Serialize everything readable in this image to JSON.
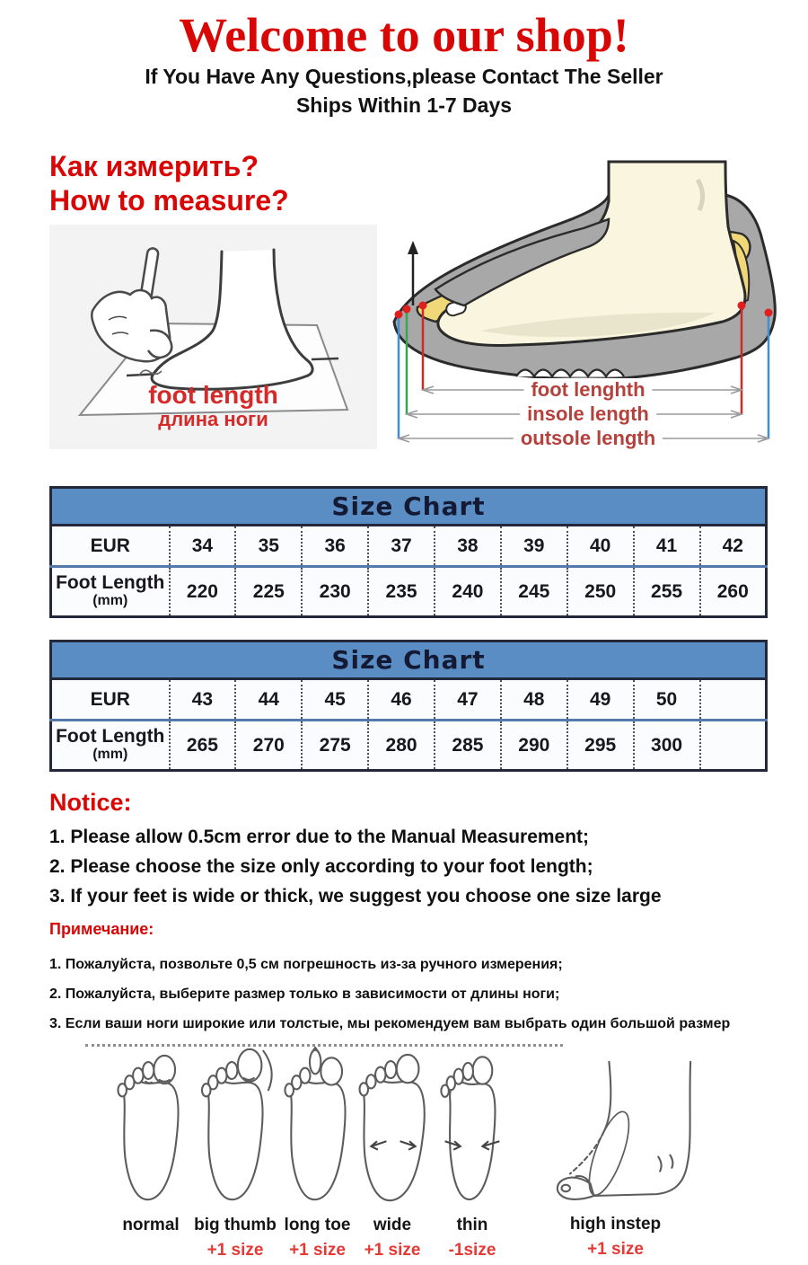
{
  "header": {
    "title": "Welcome to our shop!",
    "subtitle1": "If You Have Any Questions,please Contact The Seller",
    "subtitle2": "Ships Within 1-7 Days"
  },
  "measure": {
    "heading_ru": "Как измерить?",
    "heading_en": "How to measure?",
    "foot_tracing": {
      "label_en": "foot length",
      "label_ru": "длина ноги"
    },
    "shoe_diagram": {
      "labels": [
        "foot lenghth",
        "insole length",
        "outsole length"
      ]
    }
  },
  "size_charts": [
    {
      "title": "Size Chart",
      "row1_label": "EUR",
      "row2_label_line1": "Foot Length",
      "row2_label_line2": "(mm)",
      "sizes": [
        "34",
        "35",
        "36",
        "37",
        "38",
        "39",
        "40",
        "41",
        "42"
      ],
      "lengths": [
        "220",
        "225",
        "230",
        "235",
        "240",
        "245",
        "250",
        "255",
        "260"
      ]
    },
    {
      "title": "Size Chart",
      "row1_label": "EUR",
      "row2_label_line1": "Foot Length",
      "row2_label_line2": "(mm)",
      "sizes": [
        "43",
        "44",
        "45",
        "46",
        "47",
        "48",
        "49",
        "50",
        ""
      ],
      "lengths": [
        "265",
        "270",
        "275",
        "280",
        "285",
        "290",
        "295",
        "300",
        ""
      ]
    }
  ],
  "notice": {
    "heading": "Notice:",
    "items": [
      "1. Please allow 0.5cm error due to the Manual Measurement;",
      "2. Please choose the size only according to your foot length;",
      "3. If your feet is wide or thick, we suggest you choose one size large"
    ]
  },
  "notice_ru": {
    "heading": "Примечание:",
    "items": [
      "1. Пожалуйста, позвольте 0,5 см погрешность из-за ручного измерения;",
      "2. Пожалуйста, выберите размер только в зависимости от длины ноги;",
      "3. Если ваши ноги широкие или толстые, мы рекомендуем вам выбрать один большой размер"
    ]
  },
  "foot_types": {
    "items": [
      {
        "label": "normal",
        "size": ""
      },
      {
        "label": "big thumb",
        "size": "+1 size"
      },
      {
        "label": "long toe",
        "size": "+1 size"
      },
      {
        "label": "wide",
        "size": "+1 size"
      },
      {
        "label": "thin",
        "size": "-1size"
      },
      {
        "label": "high instep",
        "size": "+1 size"
      }
    ]
  },
  "colors": {
    "accent_red": "#d90606",
    "table_blue": "#5b8dc5",
    "label_red": "#b5413d",
    "bright_red": "#d42a2a",
    "size_red": "#e53935"
  }
}
